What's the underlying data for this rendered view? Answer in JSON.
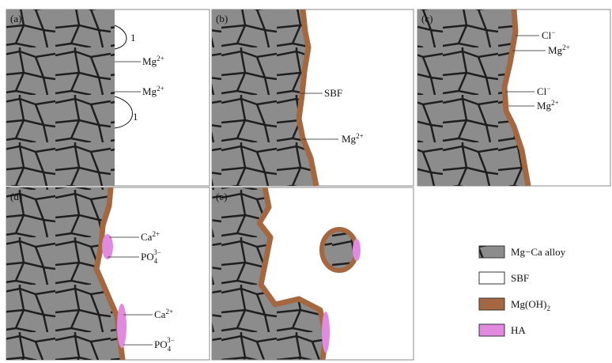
{
  "panels": [
    {
      "label": "(a)",
      "annotations": [
        {
          "text": "1"
        },
        {
          "text": "Mg",
          "sup": "2+"
        },
        {
          "text": "Mg",
          "sup": "2+"
        },
        {
          "text": "1"
        }
      ]
    },
    {
      "label": "(b)",
      "annotations": [
        {
          "text": "SBF"
        },
        {
          "text": "Mg",
          "sup": "2+"
        }
      ]
    },
    {
      "label": "(c)",
      "annotations": [
        {
          "text": "Cl",
          "sup": "−"
        },
        {
          "text": "Mg",
          "sup": "2+"
        },
        {
          "text": "Cl",
          "sup": "−"
        },
        {
          "text": "Mg",
          "sup": "2+"
        }
      ]
    },
    {
      "label": "(d)",
      "annotations": [
        {
          "text": "Ca",
          "sup": "2+"
        },
        {
          "text": "PO",
          "sub": "4",
          "sup": "3−"
        },
        {
          "text": "Ca",
          "sup": "2+"
        },
        {
          "text": "PO",
          "sub": "4",
          "sup": "3−"
        }
      ]
    },
    {
      "label": "(e)",
      "annotations": []
    }
  ],
  "legend": [
    {
      "text": "Mg−Ca alloy"
    },
    {
      "text": "SBF"
    },
    {
      "text": "Mg(OH)",
      "sub": "2"
    },
    {
      "text": "HA"
    }
  ]
}
